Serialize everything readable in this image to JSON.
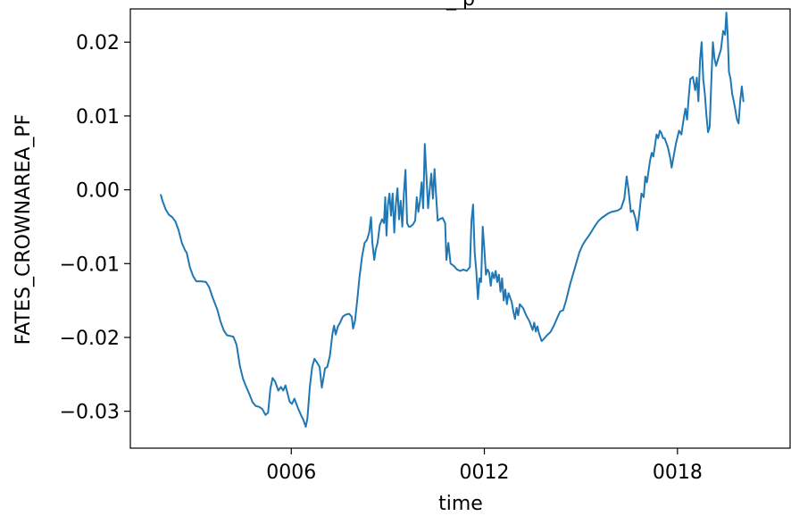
{
  "chart_data": {
    "type": "line",
    "title": "_ p",
    "xlabel": "time",
    "ylabel": "FATES_CROWNAREA_PF",
    "xlim": [
      1.0,
      21.5
    ],
    "ylim": [
      -0.035,
      0.0245
    ],
    "xticks": [
      {
        "value": 6,
        "label": "0006"
      },
      {
        "value": 12,
        "label": "0012"
      },
      {
        "value": 18,
        "label": "0018"
      }
    ],
    "yticks": [
      {
        "value": -0.03,
        "label": "−0.03"
      },
      {
        "value": -0.02,
        "label": "−0.02"
      },
      {
        "value": -0.01,
        "label": "−0.01"
      },
      {
        "value": 0.0,
        "label": "0.00"
      },
      {
        "value": 0.01,
        "label": "0.01"
      },
      {
        "value": 0.02,
        "label": "0.02"
      }
    ],
    "grid": false,
    "series": [
      {
        "color": "#1f77b4",
        "points": [
          [
            1.95,
            -0.0007
          ],
          [
            2.0,
            -0.0015
          ],
          [
            2.1,
            -0.0027
          ],
          [
            2.2,
            -0.0034
          ],
          [
            2.3,
            -0.0037
          ],
          [
            2.4,
            -0.0043
          ],
          [
            2.5,
            -0.0055
          ],
          [
            2.6,
            -0.0072
          ],
          [
            2.7,
            -0.0082
          ],
          [
            2.75,
            -0.0085
          ],
          [
            2.85,
            -0.0105
          ],
          [
            2.95,
            -0.0117
          ],
          [
            3.05,
            -0.0124
          ],
          [
            3.2,
            -0.0124
          ],
          [
            3.35,
            -0.0125
          ],
          [
            3.45,
            -0.0132
          ],
          [
            3.55,
            -0.0145
          ],
          [
            3.7,
            -0.0162
          ],
          [
            3.8,
            -0.0178
          ],
          [
            3.9,
            -0.019
          ],
          [
            4.0,
            -0.0197
          ],
          [
            4.1,
            -0.0198
          ],
          [
            4.2,
            -0.0199
          ],
          [
            4.3,
            -0.021
          ],
          [
            4.4,
            -0.0238
          ],
          [
            4.5,
            -0.0256
          ],
          [
            4.6,
            -0.0267
          ],
          [
            4.7,
            -0.0277
          ],
          [
            4.8,
            -0.0288
          ],
          [
            4.9,
            -0.0293
          ],
          [
            5.0,
            -0.0294
          ],
          [
            5.1,
            -0.0297
          ],
          [
            5.2,
            -0.0305
          ],
          [
            5.28,
            -0.0302
          ],
          [
            5.35,
            -0.027
          ],
          [
            5.42,
            -0.0255
          ],
          [
            5.5,
            -0.026
          ],
          [
            5.6,
            -0.0272
          ],
          [
            5.68,
            -0.0267
          ],
          [
            5.75,
            -0.0272
          ],
          [
            5.82,
            -0.0265
          ],
          [
            5.88,
            -0.0275
          ],
          [
            5.95,
            -0.0287
          ],
          [
            6.02,
            -0.029
          ],
          [
            6.1,
            -0.0283
          ],
          [
            6.2,
            -0.0295
          ],
          [
            6.3,
            -0.0305
          ],
          [
            6.38,
            -0.0312
          ],
          [
            6.45,
            -0.0321
          ],
          [
            6.5,
            -0.031
          ],
          [
            6.58,
            -0.0265
          ],
          [
            6.65,
            -0.024
          ],
          [
            6.72,
            -0.0229
          ],
          [
            6.8,
            -0.0234
          ],
          [
            6.88,
            -0.024
          ],
          [
            6.95,
            -0.0268
          ],
          [
            7.0,
            -0.0255
          ],
          [
            7.05,
            -0.0242
          ],
          [
            7.12,
            -0.024
          ],
          [
            7.2,
            -0.0225
          ],
          [
            7.28,
            -0.0195
          ],
          [
            7.33,
            -0.0184
          ],
          [
            7.38,
            -0.0196
          ],
          [
            7.45,
            -0.0185
          ],
          [
            7.52,
            -0.018
          ],
          [
            7.6,
            -0.0172
          ],
          [
            7.7,
            -0.0169
          ],
          [
            7.8,
            -0.0168
          ],
          [
            7.88,
            -0.0172
          ],
          [
            7.92,
            -0.0188
          ],
          [
            7.98,
            -0.0178
          ],
          [
            8.05,
            -0.015
          ],
          [
            8.12,
            -0.0118
          ],
          [
            8.2,
            -0.009
          ],
          [
            8.28,
            -0.0072
          ],
          [
            8.35,
            -0.0068
          ],
          [
            8.42,
            -0.0058
          ],
          [
            8.48,
            -0.0037
          ],
          [
            8.52,
            -0.0072
          ],
          [
            8.58,
            -0.0095
          ],
          [
            8.62,
            -0.0082
          ],
          [
            8.68,
            -0.0072
          ],
          [
            8.75,
            -0.0048
          ],
          [
            8.82,
            -0.004
          ],
          [
            8.88,
            -0.0045
          ],
          [
            8.92,
            -0.001
          ],
          [
            8.96,
            -0.0062
          ],
          [
            9.0,
            -0.0022
          ],
          [
            9.05,
            -0.0005
          ],
          [
            9.1,
            -0.0035
          ],
          [
            9.15,
            -0.0005
          ],
          [
            9.2,
            -0.0058
          ],
          [
            9.25,
            -0.002
          ],
          [
            9.3,
            0.0002
          ],
          [
            9.35,
            -0.004
          ],
          [
            9.4,
            -0.0015
          ],
          [
            9.45,
            -0.005
          ],
          [
            9.5,
            -0.0005
          ],
          [
            9.55,
            0.0027
          ],
          [
            9.6,
            -0.0045
          ],
          [
            9.65,
            -0.005
          ],
          [
            9.7,
            -0.005
          ],
          [
            9.78,
            -0.0047
          ],
          [
            9.85,
            -0.0042
          ],
          [
            9.9,
            -0.001
          ],
          [
            9.95,
            -0.003
          ],
          [
            10.0,
            -0.0015
          ],
          [
            10.05,
            0.001
          ],
          [
            10.1,
            -0.0025
          ],
          [
            10.15,
            0.0062
          ],
          [
            10.2,
            0.002
          ],
          [
            10.25,
            -0.0025
          ],
          [
            10.3,
            0.0
          ],
          [
            10.35,
            0.0022
          ],
          [
            10.4,
            -0.0012
          ],
          [
            10.45,
            0.0028
          ],
          [
            10.5,
            -0.0008
          ],
          [
            10.55,
            -0.0042
          ],
          [
            10.6,
            -0.004
          ],
          [
            10.7,
            -0.0038
          ],
          [
            10.78,
            -0.0045
          ],
          [
            10.82,
            -0.0095
          ],
          [
            10.88,
            -0.0072
          ],
          [
            10.95,
            -0.01
          ],
          [
            11.05,
            -0.0103
          ],
          [
            11.15,
            -0.0108
          ],
          [
            11.25,
            -0.011
          ],
          [
            11.35,
            -0.0108
          ],
          [
            11.45,
            -0.011
          ],
          [
            11.55,
            -0.0105
          ],
          [
            11.6,
            -0.0042
          ],
          [
            11.65,
            -0.002
          ],
          [
            11.7,
            -0.0085
          ],
          [
            11.75,
            -0.011
          ],
          [
            11.8,
            -0.0148
          ],
          [
            11.85,
            -0.012
          ],
          [
            11.9,
            -0.0125
          ],
          [
            11.95,
            -0.005
          ],
          [
            12.0,
            -0.008
          ],
          [
            12.05,
            -0.0115
          ],
          [
            12.1,
            -0.0108
          ],
          [
            12.15,
            -0.0112
          ],
          [
            12.2,
            -0.013
          ],
          [
            12.25,
            -0.0112
          ],
          [
            12.3,
            -0.012
          ],
          [
            12.35,
            -0.011
          ],
          [
            12.4,
            -0.0125
          ],
          [
            12.45,
            -0.0115
          ],
          [
            12.5,
            -0.0138
          ],
          [
            12.55,
            -0.012
          ],
          [
            12.6,
            -0.015
          ],
          [
            12.65,
            -0.0135
          ],
          [
            12.7,
            -0.0155
          ],
          [
            12.75,
            -0.014
          ],
          [
            12.85,
            -0.0152
          ],
          [
            12.9,
            -0.0165
          ],
          [
            12.95,
            -0.0175
          ],
          [
            13.0,
            -0.016
          ],
          [
            13.05,
            -0.017
          ],
          [
            13.1,
            -0.0155
          ],
          [
            13.2,
            -0.016
          ],
          [
            13.3,
            -0.017
          ],
          [
            13.4,
            -0.0178
          ],
          [
            13.5,
            -0.019
          ],
          [
            13.55,
            -0.018
          ],
          [
            13.6,
            -0.0192
          ],
          [
            13.65,
            -0.0185
          ],
          [
            13.7,
            -0.0195
          ],
          [
            13.78,
            -0.0205
          ],
          [
            13.85,
            -0.0202
          ],
          [
            13.95,
            -0.0197
          ],
          [
            14.05,
            -0.0193
          ],
          [
            14.15,
            -0.0185
          ],
          [
            14.25,
            -0.0175
          ],
          [
            14.35,
            -0.0165
          ],
          [
            14.45,
            -0.0163
          ],
          [
            14.55,
            -0.0148
          ],
          [
            14.65,
            -0.013
          ],
          [
            14.75,
            -0.0115
          ],
          [
            14.85,
            -0.01
          ],
          [
            14.95,
            -0.0085
          ],
          [
            15.05,
            -0.0075
          ],
          [
            15.15,
            -0.0068
          ],
          [
            15.25,
            -0.0062
          ],
          [
            15.35,
            -0.0055
          ],
          [
            15.45,
            -0.0048
          ],
          [
            15.55,
            -0.0042
          ],
          [
            15.65,
            -0.0038
          ],
          [
            15.75,
            -0.0035
          ],
          [
            15.85,
            -0.0032
          ],
          [
            15.95,
            -0.003
          ],
          [
            16.05,
            -0.0029
          ],
          [
            16.15,
            -0.0028
          ],
          [
            16.25,
            -0.0025
          ],
          [
            16.35,
            -0.0012
          ],
          [
            16.42,
            0.0018
          ],
          [
            16.48,
            0.0
          ],
          [
            16.55,
            -0.003
          ],
          [
            16.62,
            -0.0028
          ],
          [
            16.7,
            -0.004
          ],
          [
            16.75,
            -0.0055
          ],
          [
            16.82,
            -0.003
          ],
          [
            16.88,
            -0.0005
          ],
          [
            16.95,
            -0.001
          ],
          [
            17.0,
            0.0018
          ],
          [
            17.05,
            0.001
          ],
          [
            17.1,
            0.0025
          ],
          [
            17.15,
            0.004
          ],
          [
            17.2,
            0.005
          ],
          [
            17.25,
            0.0045
          ],
          [
            17.3,
            0.006
          ],
          [
            17.35,
            0.0075
          ],
          [
            17.4,
            0.007
          ],
          [
            17.45,
            0.008
          ],
          [
            17.5,
            0.0077
          ],
          [
            17.55,
            0.007
          ],
          [
            17.6,
            0.007
          ],
          [
            17.7,
            0.0058
          ],
          [
            17.78,
            0.0042
          ],
          [
            17.82,
            0.003
          ],
          [
            17.88,
            0.0045
          ],
          [
            17.95,
            0.0062
          ],
          [
            18.05,
            0.008
          ],
          [
            18.12,
            0.0075
          ],
          [
            18.2,
            0.0098
          ],
          [
            18.25,
            0.011
          ],
          [
            18.3,
            0.0095
          ],
          [
            18.35,
            0.0125
          ],
          [
            18.4,
            0.015
          ],
          [
            18.48,
            0.0153
          ],
          [
            18.55,
            0.0135
          ],
          [
            18.6,
            0.0152
          ],
          [
            18.65,
            0.012
          ],
          [
            18.7,
            0.0175
          ],
          [
            18.75,
            0.02
          ],
          [
            18.8,
            0.015
          ],
          [
            18.85,
            0.013
          ],
          [
            18.9,
            0.01
          ],
          [
            18.95,
            0.0078
          ],
          [
            19.0,
            0.0085
          ],
          [
            19.05,
            0.0145
          ],
          [
            19.1,
            0.02
          ],
          [
            19.15,
            0.0178
          ],
          [
            19.2,
            0.0168
          ],
          [
            19.28,
            0.018
          ],
          [
            19.35,
            0.019
          ],
          [
            19.42,
            0.0215
          ],
          [
            19.48,
            0.021
          ],
          [
            19.52,
            0.024
          ],
          [
            19.56,
            0.021
          ],
          [
            19.6,
            0.016
          ],
          [
            19.65,
            0.015
          ],
          [
            19.7,
            0.013
          ],
          [
            19.75,
            0.012
          ],
          [
            19.8,
            0.0108
          ],
          [
            19.85,
            0.0095
          ],
          [
            19.9,
            0.009
          ],
          [
            19.95,
            0.012
          ],
          [
            20.0,
            0.014
          ],
          [
            20.05,
            0.012
          ]
        ]
      }
    ]
  }
}
